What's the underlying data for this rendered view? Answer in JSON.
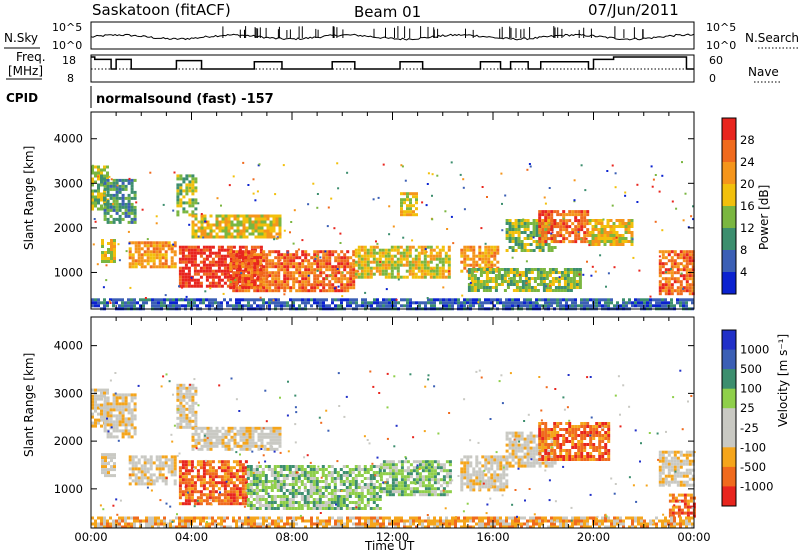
{
  "header": {
    "station": "Saskatoon (fitACF)",
    "beam": "Beam 01",
    "date": "07/Jun/2011"
  },
  "left_labels": {
    "nsky": "N.Sky",
    "freq_line1": "Freq.",
    "freq_line2": "[MHz]",
    "cpid": "CPID"
  },
  "right_labels": {
    "nsearch": "N.Search",
    "nave": "Nave"
  },
  "cpid_text": "normalsound (fast) -157",
  "colors": {
    "power": [
      "#0b22d0",
      "#3b5fb5",
      "#3c8e6e",
      "#7ab640",
      "#f2c00c",
      "#f5951b",
      "#f06a1d",
      "#e8251e"
    ],
    "velocity": [
      "#e8251e",
      "#f06a1d",
      "#f5a51b",
      "#c9c9c3",
      "#c9c9c3",
      "#8fcf4a",
      "#3c8e6e",
      "#3b5fb5",
      "#2130c8"
    ]
  },
  "chart_data": [
    {
      "type": "line",
      "name": "noise-panel",
      "series": [
        {
          "name": "N.Sky"
        },
        {
          "name": "N.Search"
        }
      ],
      "yticks_left": [
        "10^5",
        "10^0"
      ],
      "yticks_right": [
        "10^5",
        "10^0"
      ]
    },
    {
      "type": "line",
      "name": "freq-nave-panel",
      "yticks_left": [
        "18",
        "8"
      ],
      "yticks_right": [
        "60",
        "0"
      ],
      "series": [
        {
          "name": "Freq."
        },
        {
          "name": "Nave"
        }
      ],
      "freq_steps": [
        [
          0,
          18
        ],
        [
          0.15,
          17
        ],
        [
          0.8,
          13
        ],
        [
          1.0,
          17
        ],
        [
          1.6,
          13
        ],
        [
          3.4,
          16.5
        ],
        [
          4.4,
          13
        ],
        [
          6.5,
          16
        ],
        [
          7.6,
          13
        ],
        [
          9.6,
          16
        ],
        [
          10.5,
          13
        ],
        [
          12.3,
          16
        ],
        [
          13.2,
          13
        ],
        [
          15.5,
          16
        ],
        [
          16.3,
          13
        ],
        [
          16.7,
          16
        ],
        [
          17.4,
          13
        ],
        [
          17.9,
          16
        ],
        [
          19.8,
          13
        ],
        [
          20.0,
          17
        ],
        [
          20.8,
          18
        ],
        [
          21.6,
          18
        ],
        [
          23.7,
          13
        ]
      ]
    },
    {
      "type": "heatmap",
      "name": "power",
      "ylabel": "Slant Range [km]",
      "xlabel": "Time UT",
      "yticks": [
        1000,
        2000,
        3000,
        4000
      ],
      "xticks": [
        "00:00",
        "04:00",
        "08:00",
        "12:00",
        "16:00",
        "20:00",
        "00:00"
      ],
      "ylim": [
        180,
        4600
      ],
      "xlim": [
        0,
        24
      ],
      "colorbar_label": "Power [dB]",
      "colorbar_ticks": [
        "4",
        "8",
        "12",
        "16",
        "20",
        "24",
        "28"
      ],
      "regions": [
        {
          "t0": 0.0,
          "t1": 0.6,
          "r0": 2400,
          "r1": 3400,
          "level": 3
        },
        {
          "t0": 0.5,
          "t1": 1.7,
          "r0": 2100,
          "r1": 3100,
          "level": 2
        },
        {
          "t0": 0.4,
          "t1": 0.9,
          "r0": 1250,
          "r1": 1750,
          "level": 4
        },
        {
          "t0": 1.5,
          "t1": 3.4,
          "r0": 1100,
          "r1": 1700,
          "level": 5
        },
        {
          "t0": 3.4,
          "t1": 4.2,
          "r0": 2300,
          "r1": 3200,
          "level": 3
        },
        {
          "t0": 3.5,
          "t1": 6.8,
          "r0": 700,
          "r1": 1600,
          "level": 7
        },
        {
          "t0": 4.0,
          "t1": 7.5,
          "r0": 1800,
          "r1": 2300,
          "level": 4
        },
        {
          "t0": 5.5,
          "t1": 10.5,
          "r0": 600,
          "r1": 1500,
          "level": 6
        },
        {
          "t0": 10.5,
          "t1": 14.3,
          "r0": 900,
          "r1": 1600,
          "level": 4
        },
        {
          "t0": 12.3,
          "t1": 13.0,
          "r0": 2300,
          "r1": 2800,
          "level": 4
        },
        {
          "t0": 14.7,
          "t1": 16.2,
          "r0": 1000,
          "r1": 1600,
          "level": 5
        },
        {
          "t0": 15.0,
          "t1": 19.5,
          "r0": 600,
          "r1": 1100,
          "level": 3
        },
        {
          "t0": 16.5,
          "t1": 18.5,
          "r0": 1500,
          "r1": 2200,
          "level": 3
        },
        {
          "t0": 17.8,
          "t1": 19.8,
          "r0": 1700,
          "r1": 2400,
          "level": 6
        },
        {
          "t0": 19.8,
          "t1": 21.5,
          "r0": 1600,
          "r1": 2200,
          "level": 4
        },
        {
          "t0": 22.6,
          "t1": 24.0,
          "r0": 500,
          "r1": 1500,
          "level": 6
        },
        {
          "t0": 0.0,
          "t1": 24.0,
          "r0": 200,
          "r1": 420,
          "level": 1
        }
      ]
    },
    {
      "type": "heatmap",
      "name": "velocity",
      "ylabel": "Slant Range [km]",
      "xlabel": "Time UT",
      "yticks": [
        1000,
        2000,
        3000,
        4000
      ],
      "xticks": [
        "00:00",
        "04:00",
        "08:00",
        "12:00",
        "16:00",
        "20:00",
        "00:00"
      ],
      "ylim": [
        180,
        4600
      ],
      "xlim": [
        0,
        24
      ],
      "colorbar_label": "Velocity [m s⁻¹]",
      "colorbar_ticks": [
        "1000",
        "500",
        "100",
        "25",
        "-25",
        "-100",
        "-500",
        "-1000"
      ],
      "regions": [
        {
          "t0": 0.0,
          "t1": 0.6,
          "r0": 2300,
          "r1": 3100,
          "level": 3
        },
        {
          "t0": 0.5,
          "t1": 1.7,
          "r0": 2100,
          "r1": 3000,
          "level": 3
        },
        {
          "t0": 0.4,
          "t1": 0.9,
          "r0": 1250,
          "r1": 1750,
          "level": 3
        },
        {
          "t0": 1.5,
          "t1": 3.4,
          "r0": 1100,
          "r1": 1700,
          "level": 3
        },
        {
          "t0": 3.4,
          "t1": 4.2,
          "r0": 2300,
          "r1": 3200,
          "level": 3
        },
        {
          "t0": 4.0,
          "t1": 7.5,
          "r0": 1800,
          "r1": 2300,
          "level": 3
        },
        {
          "t0": 3.5,
          "t1": 6.2,
          "r0": 700,
          "r1": 1600,
          "level": 1
        },
        {
          "t0": 6.2,
          "t1": 11.5,
          "r0": 600,
          "r1": 1500,
          "level": 5
        },
        {
          "t0": 11.5,
          "t1": 14.3,
          "r0": 900,
          "r1": 1600,
          "level": 5
        },
        {
          "t0": 14.7,
          "t1": 16.5,
          "r0": 1000,
          "r1": 1700,
          "level": 3
        },
        {
          "t0": 16.5,
          "t1": 18.5,
          "r0": 1500,
          "r1": 2200,
          "level": 3
        },
        {
          "t0": 17.8,
          "t1": 20.6,
          "r0": 1600,
          "r1": 2400,
          "level": 1
        },
        {
          "t0": 22.6,
          "t1": 24.0,
          "r0": 1100,
          "r1": 1800,
          "level": 3
        },
        {
          "t0": 23.0,
          "t1": 24.0,
          "r0": 400,
          "r1": 900,
          "level": 1
        },
        {
          "t0": 0.0,
          "t1": 24.0,
          "r0": 200,
          "r1": 420,
          "level": 2
        }
      ]
    }
  ]
}
